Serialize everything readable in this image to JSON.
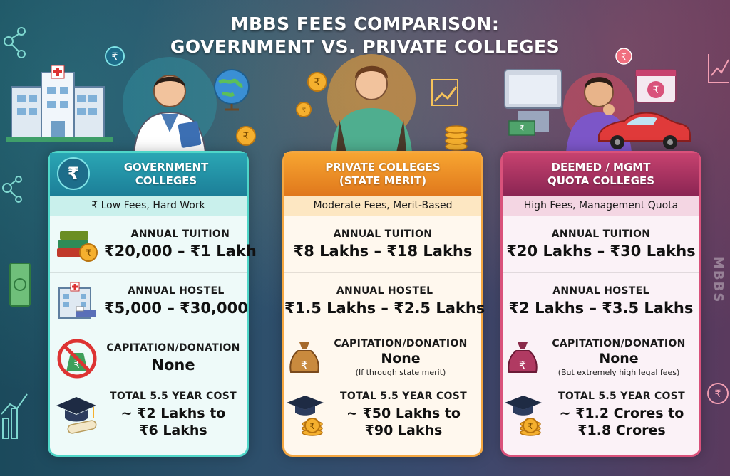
{
  "title_line1": "MBBS Fees Comparison:",
  "title_line2": "Government vs. Private Colleges",
  "side_text": "MBBS",
  "colors": {
    "government": "#2aa6b4",
    "private": "#f29a2e",
    "deemed": "#a8345f"
  },
  "columns": [
    {
      "header_line1": "Government",
      "header_line2": "Colleges",
      "badge_icon": "₹",
      "subtitle": "₹ Low Fees, Hard Work",
      "tuition_label": "Annual Tuition",
      "tuition_value": "₹20,000 – ₹1 Lakh",
      "hostel_label": "Annual Hostel",
      "hostel_value": "₹5,000 – ₹30,000",
      "capitation_label": "Capitation/Donation",
      "capitation_value": "None",
      "capitation_note": "",
      "total_label": "Total 5.5 Year Cost",
      "total_line1": "~ ₹2 Lakhs to",
      "total_line2": "₹6 Lakhs"
    },
    {
      "header_line1": "Private Colleges",
      "header_line2": "(State Merit)",
      "subtitle": "Moderate Fees, Merit-Based",
      "tuition_label": "Annual Tuition",
      "tuition_value": "₹8 Lakhs – ₹18 Lakhs",
      "hostel_label": "Annual Hostel",
      "hostel_value": "₹1.5 Lakhs – ₹2.5 Lakhs",
      "capitation_label": "Capitation/Donation",
      "capitation_value": "None",
      "capitation_note": "(If through state merit)",
      "total_label": "Total 5.5 Year Cost",
      "total_line1": "~ ₹50 Lakhs to",
      "total_line2": "₹90 Lakhs"
    },
    {
      "header_line1": "Deemed / MGMT",
      "header_line2": "Quota Colleges",
      "subtitle": "High Fees, Management Quota",
      "tuition_label": "Annual Tuition",
      "tuition_value": "₹20 Lakhs – ₹30 Lakhs",
      "hostel_label": "Annual Hostel",
      "hostel_value": "₹2 Lakhs – ₹3.5 Lakhs",
      "capitation_label": "Capitation/Donation",
      "capitation_value": "None",
      "capitation_note": "(But extremely high legal fees)",
      "total_label": "Total 5.5 Year Cost",
      "total_line1": "~ ₹1.2 Crores to",
      "total_line2": "₹1.8 Crores"
    }
  ]
}
